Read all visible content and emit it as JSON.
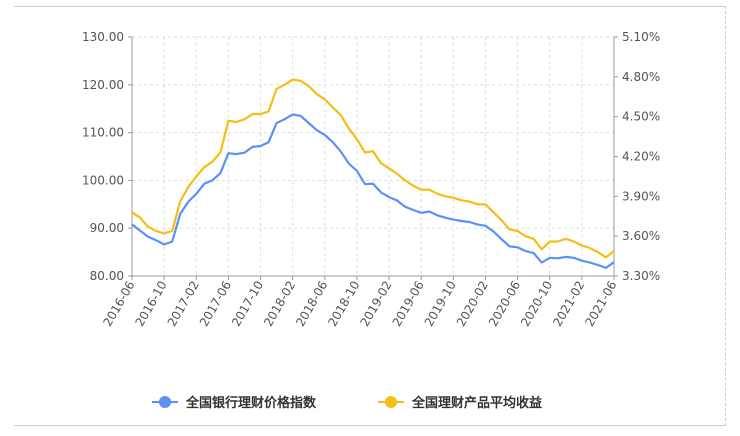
{
  "chart_data": {
    "type": "line",
    "x": [
      "2016-06",
      "2016-07",
      "2016-08",
      "2016-09",
      "2016-10",
      "2016-11",
      "2016-12",
      "2017-01",
      "2017-02",
      "2017-03",
      "2017-04",
      "2017-05",
      "2017-06",
      "2017-07",
      "2017-08",
      "2017-09",
      "2017-10",
      "2017-11",
      "2017-12",
      "2018-01",
      "2018-02",
      "2018-03",
      "2018-04",
      "2018-05",
      "2018-06",
      "2018-07",
      "2018-08",
      "2018-09",
      "2018-10",
      "2018-11",
      "2018-12",
      "2019-01",
      "2019-02",
      "2019-03",
      "2019-04",
      "2019-05",
      "2019-06",
      "2019-07",
      "2019-08",
      "2019-09",
      "2019-10",
      "2019-11",
      "2019-12",
      "2020-01",
      "2020-02",
      "2020-03",
      "2020-04",
      "2020-05",
      "2020-06",
      "2020-07",
      "2020-08",
      "2020-09",
      "2020-10",
      "2020-11",
      "2020-12",
      "2021-01",
      "2021-02",
      "2021-03",
      "2021-04",
      "2021-05",
      "2021-06"
    ],
    "x_tick_labels": [
      "2016-06",
      "2016-10",
      "2017-02",
      "2017-06",
      "2017-10",
      "2018-02",
      "2018-06",
      "2018-10",
      "2019-02",
      "2019-06",
      "2019-10",
      "2020-02",
      "2020-06",
      "2020-10",
      "2021-02",
      "2021-06"
    ],
    "y_left": {
      "ylim": [
        80,
        130
      ],
      "ticks": [
        "80.00",
        "90.00",
        "100.00",
        "110.00",
        "120.00",
        "130.00"
      ]
    },
    "y_right": {
      "ylim": [
        3.3,
        5.1
      ],
      "ticks": [
        "3.30%",
        "3.60%",
        "3.90%",
        "4.20%",
        "4.50%",
        "4.80%",
        "5.10%"
      ]
    },
    "series": [
      {
        "name": "全国银行理财价格指数",
        "axis": "left",
        "color": "#5b8ff9",
        "values": [
          90.8,
          89.5,
          88.2,
          87.5,
          86.6,
          87.2,
          93.0,
          95.5,
          97.2,
          99.3,
          100.0,
          101.5,
          105.7,
          105.5,
          105.8,
          107.0,
          107.2,
          108.0,
          112.0,
          112.8,
          113.8,
          113.5,
          112.0,
          110.5,
          109.5,
          108.0,
          106.0,
          103.5,
          102.0,
          99.2,
          99.3,
          97.5,
          96.5,
          95.8,
          94.5,
          93.8,
          93.2,
          93.5,
          92.7,
          92.2,
          91.8,
          91.5,
          91.3,
          90.8,
          90.5,
          89.3,
          87.7,
          86.2,
          86.0,
          85.2,
          84.8,
          82.8,
          83.8,
          83.7,
          84.0,
          83.8,
          83.2,
          82.8,
          82.3,
          81.7,
          82.9
        ]
      },
      {
        "name": "全国理财产品平均收益",
        "axis": "right",
        "color": "#f6bd16",
        "values": [
          3.78,
          3.74,
          3.67,
          3.64,
          3.62,
          3.64,
          3.86,
          3.97,
          4.05,
          4.12,
          4.16,
          4.23,
          4.47,
          4.46,
          4.48,
          4.52,
          4.52,
          4.54,
          4.71,
          4.74,
          4.78,
          4.77,
          4.73,
          4.67,
          4.63,
          4.57,
          4.51,
          4.41,
          4.33,
          4.23,
          4.24,
          4.15,
          4.11,
          4.07,
          4.02,
          3.98,
          3.95,
          3.95,
          3.92,
          3.9,
          3.89,
          3.87,
          3.86,
          3.84,
          3.84,
          3.78,
          3.72,
          3.65,
          3.64,
          3.6,
          3.58,
          3.5,
          3.56,
          3.56,
          3.58,
          3.56,
          3.53,
          3.51,
          3.48,
          3.44,
          3.49
        ]
      }
    ],
    "legend_position": "bottom",
    "grid": true
  }
}
